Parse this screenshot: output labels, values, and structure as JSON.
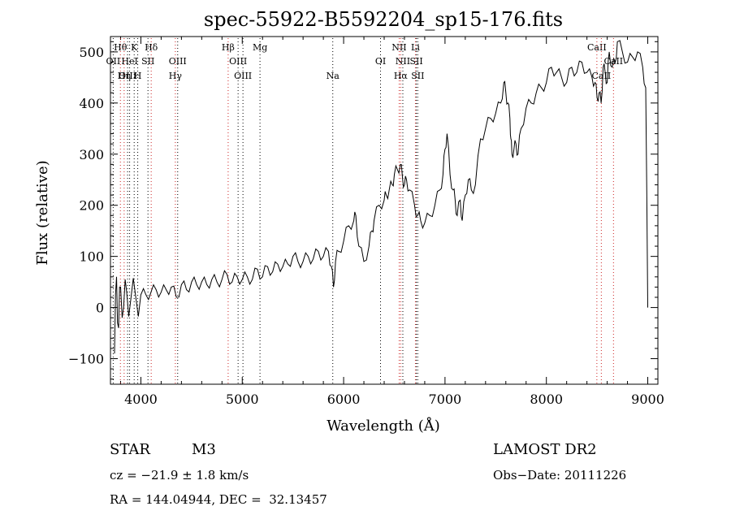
{
  "chart_data": {
    "type": "line",
    "title": "spec-55922-B5592204_sp15-176.fits",
    "xlabel": "Wavelength (Å)",
    "ylabel": "Flux (relative)",
    "xlim": [
      3700,
      9100
    ],
    "ylim": [
      -150,
      530
    ],
    "xticks": [
      4000,
      5000,
      6000,
      7000,
      8000,
      9000
    ],
    "yticks": [
      -100,
      0,
      100,
      200,
      300,
      400,
      500
    ],
    "grid": false,
    "legend": "none",
    "line_color": "#000000",
    "marker_line_color": "#cc2222",
    "series": [
      {
        "x": [
          3740,
          3760,
          3780,
          3800,
          3830,
          3860,
          3900,
          3950,
          4000,
          4050,
          4100,
          4150,
          4200,
          4250,
          4300,
          4350,
          4400,
          4450,
          4500,
          4550,
          4600,
          4650,
          4700,
          4750,
          4800,
          4850,
          4900,
          4950,
          5000,
          5050,
          5100,
          5150,
          5200,
          5250,
          5300,
          5350,
          5400,
          5450,
          5500,
          5550,
          5600,
          5650,
          5700,
          5750,
          5800,
          5850,
          5880,
          5900,
          5920,
          5950,
          6000,
          6050,
          6100,
          6120,
          6150,
          6200,
          6250,
          6280,
          6300,
          6350,
          6400,
          6420,
          6450,
          6480,
          6500,
          6530,
          6560,
          6580,
          6600,
          6620,
          6650,
          6700,
          6730,
          6760,
          6800,
          6850,
          6900,
          6950,
          6980,
          7000,
          7020,
          7050,
          7080,
          7100,
          7120,
          7150,
          7170,
          7200,
          7230,
          7260,
          7300,
          7350,
          7400,
          7450,
          7500,
          7550,
          7580,
          7600,
          7620,
          7640,
          7650,
          7660,
          7680,
          7700,
          7720,
          7750,
          7800,
          7850,
          7900,
          7950,
          8000,
          8050,
          8100,
          8150,
          8200,
          8250,
          8300,
          8350,
          8400,
          8450,
          8480,
          8500,
          8520,
          8540,
          8560,
          8580,
          8600,
          8620,
          8650,
          8680,
          8700,
          8750,
          8800,
          8850,
          8900,
          8950,
          8980,
          9000
        ],
        "y": [
          -90,
          60,
          -40,
          40,
          0,
          30,
          15,
          20,
          25,
          25,
          30,
          35,
          30,
          35,
          40,
          20,
          45,
          35,
          50,
          45,
          50,
          45,
          55,
          50,
          55,
          65,
          50,
          60,
          55,
          60,
          55,
          75,
          60,
          80,
          70,
          85,
          80,
          85,
          100,
          90,
          90,
          100,
          95,
          110,
          100,
          110,
          80,
          40,
          90,
          110,
          130,
          160,
          170,
          180,
          120,
          90,
          120,
          150,
          170,
          200,
          210,
          220,
          230,
          240,
          260,
          270,
          280,
          255,
          240,
          250,
          230,
          200,
          180,
          170,
          165,
          180,
          200,
          230,
          260,
          310,
          340,
          260,
          230,
          210,
          180,
          210,
          170,
          220,
          250,
          230,
          240,
          330,
          350,
          370,
          380,
          400,
          440,
          420,
          400,
          370,
          330,
          300,
          310,
          320,
          300,
          350,
          390,
          400,
          420,
          430,
          440,
          470,
          460,
          450,
          440,
          470,
          460,
          480,
          460,
          450,
          440,
          410,
          420,
          400,
          470,
          460,
          440,
          500,
          470,
          480,
          520,
          500,
          480,
          490,
          500,
          470,
          430,
          0
        ]
      }
    ],
    "lines": [
      {
        "label": "Hθ",
        "x": 3798,
        "row": 0,
        "color": "#cc2222"
      },
      {
        "label": "K",
        "x": 3934,
        "row": 0,
        "color": "#000000"
      },
      {
        "label": "Hδ",
        "x": 4102,
        "row": 0,
        "color": "#cc2222"
      },
      {
        "label": "Hβ",
        "x": 4861,
        "row": 0,
        "color": "#cc2222"
      },
      {
        "label": "Mg",
        "x": 5175,
        "row": 0,
        "color": "#000000"
      },
      {
        "label": "NII",
        "x": 6548,
        "row": 0,
        "color": "#cc2222"
      },
      {
        "label": "Li",
        "x": 6708,
        "row": 0,
        "color": "#cc2222"
      },
      {
        "label": "CaII",
        "x": 8498,
        "row": 0,
        "color": "#cc2222"
      },
      {
        "label": "OII",
        "x": 3727,
        "row": 1,
        "color": "#000000"
      },
      {
        "label": "HeI",
        "x": 3889,
        "row": 1,
        "color": "#000000"
      },
      {
        "label": "SII",
        "x": 4070,
        "row": 1,
        "color": "#000000"
      },
      {
        "label": "OIII",
        "x": 4363,
        "row": 1,
        "color": "#000000"
      },
      {
        "label": "OIII",
        "x": 4959,
        "row": 1,
        "color": "#000000"
      },
      {
        "label": "OI",
        "x": 6364,
        "row": 1,
        "color": "#000000"
      },
      {
        "label": "NII",
        "x": 6584,
        "row": 1,
        "color": "#000000"
      },
      {
        "label": "SII",
        "x": 6717,
        "row": 1,
        "color": "#000000"
      },
      {
        "label": "CaII",
        "x": 8662,
        "row": 1,
        "color": "#cc2222"
      },
      {
        "label": "OIII",
        "x": 3869,
        "row": 2,
        "color": "#000000"
      },
      {
        "label": "Hη",
        "x": 3835,
        "row": 2,
        "color": "#cc2222"
      },
      {
        "label": "H",
        "x": 3969,
        "row": 2,
        "color": "#000000"
      },
      {
        "label": "Hγ",
        "x": 4340,
        "row": 2,
        "color": "#cc2222"
      },
      {
        "label": "OIII",
        "x": 5007,
        "row": 2,
        "color": "#000000"
      },
      {
        "label": "Na",
        "x": 5893,
        "row": 2,
        "color": "#000000"
      },
      {
        "label": "Hα",
        "x": 6563,
        "row": 2,
        "color": "#cc2222"
      },
      {
        "label": "SII",
        "x": 6731,
        "row": 2,
        "color": "#000000"
      },
      {
        "label": "CaII",
        "x": 8542,
        "row": 2,
        "color": "#cc2222"
      }
    ]
  },
  "footer": {
    "object_class": "STAR",
    "subclass": "M3",
    "survey": "LAMOST DR2",
    "cz": "cz = −21.9 ± 1.8 km/s",
    "obs_date": "Obs−Date: 20111226",
    "coords": "RA = 144.04944, DEC =  32.13457"
  }
}
